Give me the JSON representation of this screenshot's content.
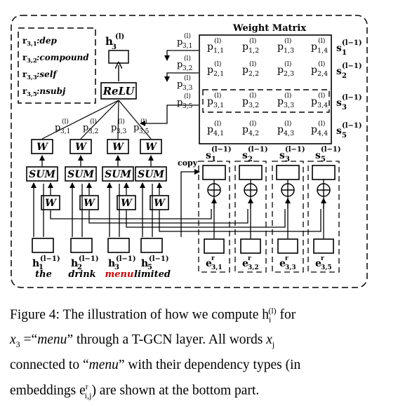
{
  "legend": {
    "items": [
      {
        "sym": "r",
        "sub": "3,1",
        "label": "dep"
      },
      {
        "sym": "r",
        "sub": "3,2",
        "label": "compound"
      },
      {
        "sym": "r",
        "sub": "3,3",
        "label": "self"
      },
      {
        "sym": "r",
        "sub": "3,5",
        "label": "nsubj"
      }
    ]
  },
  "output": {
    "label": "h",
    "sup": "(l)",
    "sub": "3"
  },
  "relu": {
    "label": "ReLU"
  },
  "weight_matrix": {
    "title": "Weight Matrix",
    "rows": [
      {
        "cells": [
          "p1,1",
          "p1,2",
          "p1,3",
          "p1,4"
        ],
        "s": "s1"
      },
      {
        "cells": [
          "p2,1",
          "p2,2",
          "p2,3",
          "p2,4"
        ],
        "s": "s2"
      },
      {
        "cells": [
          "p3,1",
          "p3,2",
          "p3,3",
          "p3,4"
        ],
        "s": "s3"
      },
      {
        "cells": [
          "p4,1",
          "p4,2",
          "p4,3",
          "p4,4"
        ],
        "s": "s5"
      }
    ],
    "cell_sup": "(l)",
    "s_sup": "(l−1)"
  },
  "selected_p": [
    "p3,1",
    "p3,2",
    "p3,3",
    "p3,5"
  ],
  "blocks": {
    "w_label": "W",
    "sum_label": "SUM",
    "copy_label": "copy"
  },
  "words": [
    {
      "h": "h",
      "sub": "1",
      "sup": "(l−1)",
      "word": "the",
      "highlight": false
    },
    {
      "h": "h",
      "sub": "2",
      "sup": "(l−1)",
      "word": "drink",
      "highlight": false
    },
    {
      "h": "h",
      "sub": "3",
      "sup": "(l−1)",
      "word": "menu",
      "highlight": true
    },
    {
      "h": "h",
      "sub": "5",
      "sup": "(l−1)",
      "word": "limited",
      "highlight": false
    }
  ],
  "s_nodes": [
    {
      "s": "s",
      "sub": "1",
      "sup": "(l−1)"
    },
    {
      "s": "s",
      "sub": "2",
      "sup": "(l−1)"
    },
    {
      "s": "s",
      "sub": "3",
      "sup": "(l−1)"
    },
    {
      "s": "s",
      "sub": "5",
      "sup": "(l−1)"
    }
  ],
  "e_nodes": [
    {
      "e": "e",
      "sup": "r",
      "sub": "3,1"
    },
    {
      "e": "e",
      "sup": "r",
      "sub": "3,2"
    },
    {
      "e": "e",
      "sup": "r",
      "sub": "3,3"
    },
    {
      "e": "e",
      "sup": "r",
      "sub": "3,5"
    }
  ],
  "caption": {
    "prefix": "Figure 4: The illustration of how we compute h",
    "prefix_sub": "i",
    "prefix_sup": "(l)",
    "line1_end": " for",
    "line2_a": "x",
    "line2_a_sub": "3",
    "line2_b": " =“",
    "line2_menu": "menu",
    "line2_c": "” through a T-GCN layer.  All words ",
    "line2_x": "x",
    "line2_x_sub": "j",
    "line3_a": "connected to “",
    "line3_menu": "menu",
    "line3_b": "” with their dependency types (in",
    "line4_a": "embeddings e",
    "line4_sup": "r",
    "line4_sub": "i,j",
    "line4_b": ") are shown at the bottom part."
  }
}
